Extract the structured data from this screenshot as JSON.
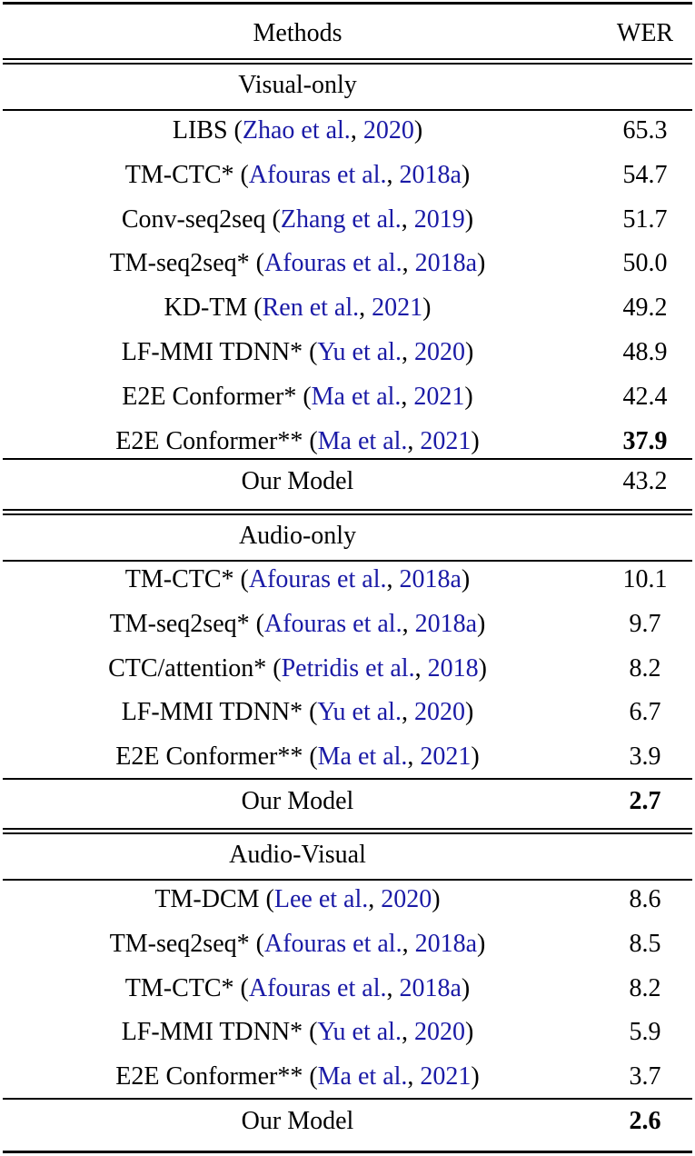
{
  "header": {
    "methods": "Methods",
    "wer": "WER"
  },
  "sections": [
    {
      "title": "Visual-only",
      "rows": [
        {
          "name": "LIBS",
          "authors": "Zhao et al.",
          "year": "2020",
          "wer": "65.3",
          "bold": false
        },
        {
          "name": "TM-CTC*",
          "authors": "Afouras et al.",
          "year": "2018a",
          "wer": "54.7",
          "bold": false
        },
        {
          "name": "Conv-seq2seq",
          "authors": "Zhang et al.",
          "year": "2019",
          "wer": "51.7",
          "bold": false
        },
        {
          "name": "TM-seq2seq*",
          "authors": "Afouras et al.",
          "year": "2018a",
          "wer": "50.0",
          "bold": false
        },
        {
          "name": "KD-TM",
          "authors": "Ren et al.",
          "year": "2021",
          "wer": "49.2",
          "bold": false
        },
        {
          "name": "LF-MMI TDNN*",
          "authors": "Yu et al.",
          "year": "2020",
          "wer": "48.9",
          "bold": false
        },
        {
          "name": "E2E Conformer*",
          "authors": "Ma et al.",
          "year": "2021",
          "wer": "42.4",
          "bold": false
        },
        {
          "name": "E2E Conformer**",
          "authors": "Ma et al.",
          "year": "2021",
          "wer": "37.9",
          "bold": true
        }
      ],
      "ours": {
        "name": "Our Model",
        "wer": "43.2",
        "bold": false
      }
    },
    {
      "title": "Audio-only",
      "rows": [
        {
          "name": "TM-CTC*",
          "authors": "Afouras et al.",
          "year": "2018a",
          "wer": "10.1",
          "bold": false
        },
        {
          "name": "TM-seq2seq*",
          "authors": "Afouras et al.",
          "year": "2018a",
          "wer": "9.7",
          "bold": false
        },
        {
          "name": "CTC/attention*",
          "authors": "Petridis et al.",
          "year": "2018",
          "wer": "8.2",
          "bold": false
        },
        {
          "name": "LF-MMI TDNN*",
          "authors": "Yu et al.",
          "year": "2020",
          "wer": "6.7",
          "bold": false
        },
        {
          "name": "E2E Conformer**",
          "authors": "Ma et al.",
          "year": "2021",
          "wer": "3.9",
          "bold": false
        }
      ],
      "ours": {
        "name": "Our Model",
        "wer": "2.7",
        "bold": true
      }
    },
    {
      "title": "Audio-Visual",
      "rows": [
        {
          "name": "TM-DCM",
          "authors": "Lee et al.",
          "year": "2020",
          "wer": "8.6",
          "bold": false
        },
        {
          "name": "TM-seq2seq*",
          "authors": "Afouras et al.",
          "year": "2018a",
          "wer": "8.5",
          "bold": false
        },
        {
          "name": "TM-CTC*",
          "authors": "Afouras et al.",
          "year": "2018a",
          "wer": "8.2",
          "bold": false
        },
        {
          "name": "LF-MMI TDNN*",
          "authors": "Yu et al.",
          "year": "2020",
          "wer": "5.9",
          "bold": false
        },
        {
          "name": "E2E Conformer**",
          "authors": "Ma et al.",
          "year": "2021",
          "wer": "3.7",
          "bold": false
        }
      ],
      "ours": {
        "name": "Our Model",
        "wer": "2.6",
        "bold": true
      }
    }
  ]
}
